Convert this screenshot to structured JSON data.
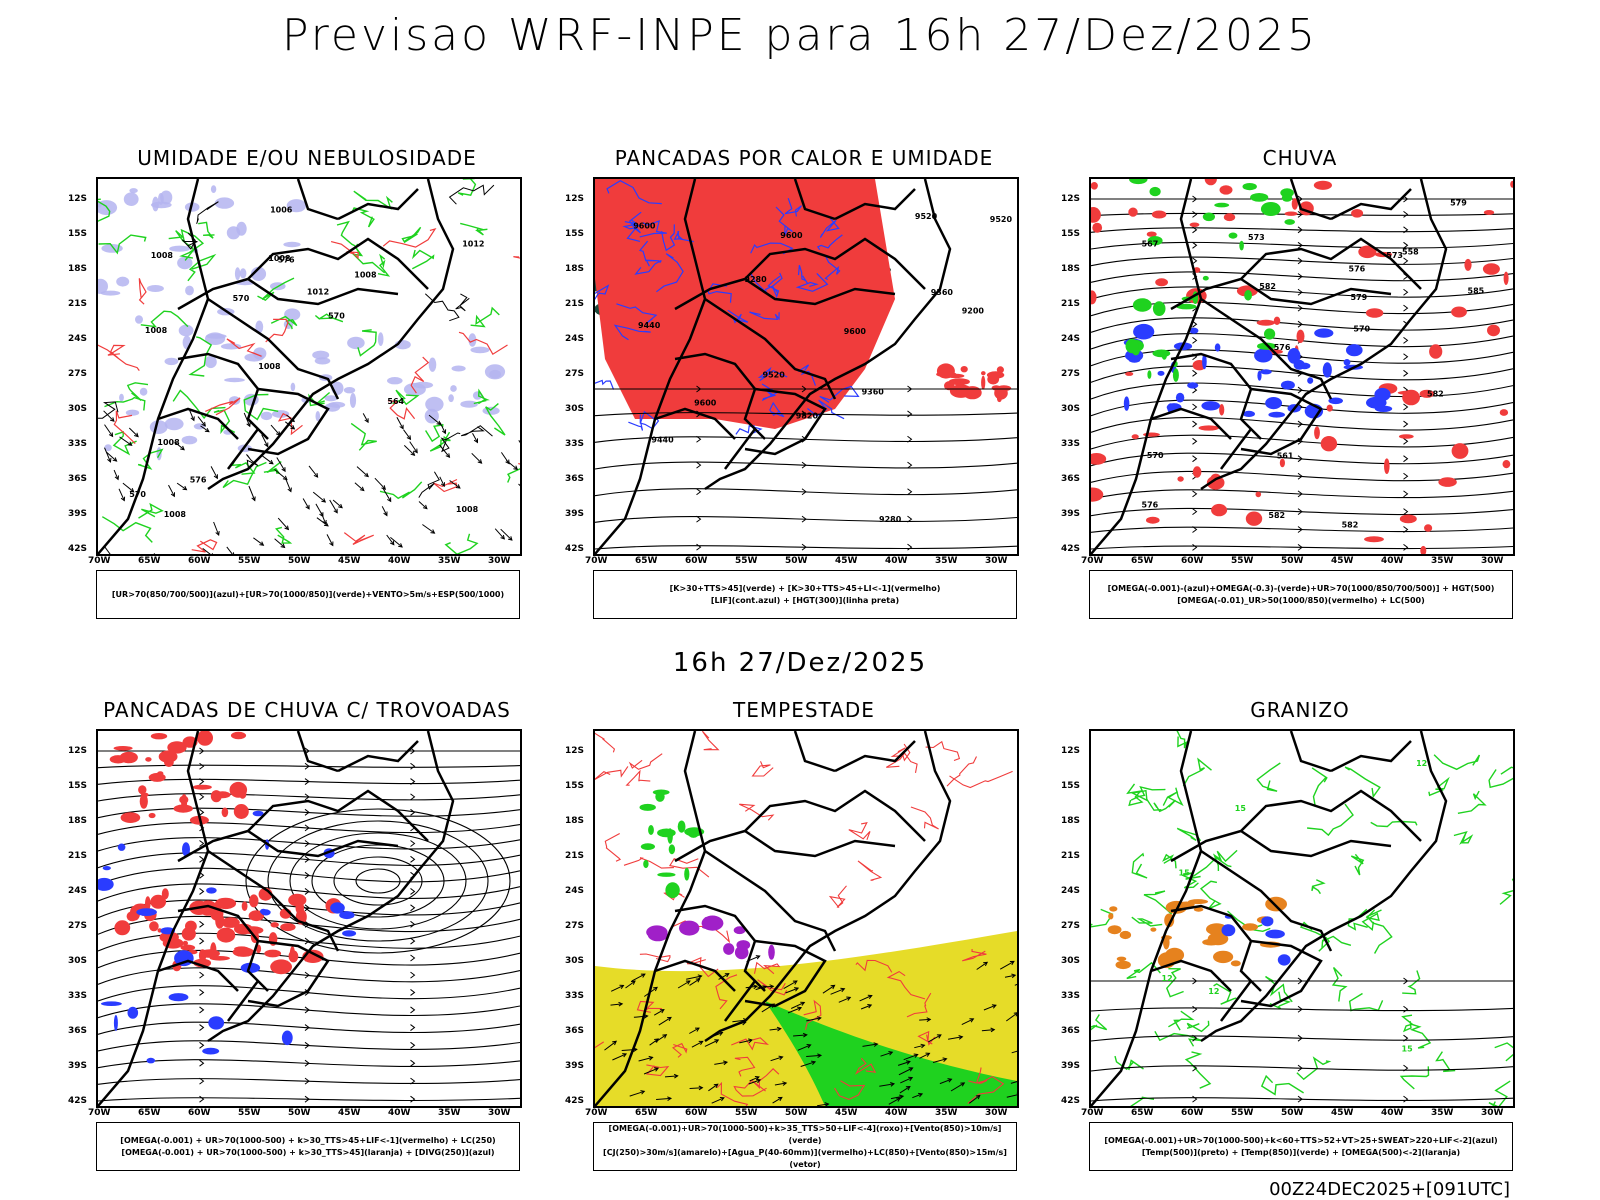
{
  "header": {
    "title": "Previsao WRF-INPE  para 16h 27/Dez/2025"
  },
  "subtitle": "16h 27/Dez/2025",
  "footer": "00Z24DEC2025+[091UTC]",
  "colors": {
    "red": "#f03c3c",
    "green": "#1fd21f",
    "blue": "#2a3cff",
    "lavender": "#b4b4f0",
    "yellow": "#e6dc28",
    "dark_green": "#1e4a3c",
    "orange": "#e6821e",
    "purple": "#a020c8"
  },
  "axes": {
    "y_ticks": [
      "12S",
      "15S",
      "18S",
      "21S",
      "24S",
      "27S",
      "30S",
      "33S",
      "36S",
      "39S",
      "42S"
    ],
    "x_ticks": [
      "70W",
      "65W",
      "60W",
      "55W",
      "50W",
      "45W",
      "40W",
      "35W",
      "30W"
    ]
  },
  "panels": [
    {
      "title": "UMIDADE E/OU NEBULOSIDADE",
      "legend": [
        "[UR>70(850/700/500)](azul)+[UR>70(1000/850)](verde)+VENTO>5m/s+ESP(500/1000)"
      ]
    },
    {
      "title": "PANCADAS POR CALOR E UMIDADE",
      "legend": [
        "[K>30+TTS>45](verde) + [K>30+TTS>45+LI<-1](vermelho)",
        "[LIF](cont.azul) + [HGT(300)](linha preta)"
      ]
    },
    {
      "title": "CHUVA",
      "legend": [
        "[OMEGA(-0.001)-(azul)+OMEGA(-0.3)-(verde)+UR>70(1000/850/700/500)] + HGT(500)",
        "[OMEGA(-0.01)_UR>50(1000/850)(vermelho) + LC(500)"
      ]
    },
    {
      "title": "PANCADAS DE CHUVA C/ TROVOADAS",
      "legend": [
        "[OMEGA(-0.001) + UR>70(1000-500) + k>30_TTS>45+LIF<-1](vermelho) + LC(250)",
        "[OMEGA(-0.001) + UR>70(1000-500) + k>30_TTS>45](laranja) + [DIVG(250)](azul)"
      ]
    },
    {
      "title": "TEMPESTADE",
      "legend": [
        "[OMEGA(-0.001)+UR>70(1000-500)+k>35_TTS>50+LIF<-4](roxo)+[Vento(850)>10m/s](verde)",
        "[CJ(250)>30m/s](amarelo)+[Agua_P(40-60mm)](vermelho)+LC(850)+[Vento(850)>15m/s](vetor)"
      ]
    },
    {
      "title": "GRANIZO",
      "legend": [
        "[OMEGA(-0.001)+UR>70(1000-500)+k<60+TTS>52+VT>25+SWEAT>220+LIF<-2](azul)",
        "[Temp(500)](preto) + [Temp(850)](verde) + [OMEGA(500)<-2](laranja)"
      ]
    }
  ],
  "contour_labels": {
    "p1": [
      "1008",
      "1008",
      "1012",
      "1008",
      "1008",
      "1008",
      "1008",
      "1012",
      "1008",
      "570",
      "570",
      "576",
      "576",
      "570",
      "564",
      "1008",
      "1006"
    ],
    "p2": [
      "9600",
      "9600",
      "9520",
      "9600",
      "9600",
      "9520",
      "9520",
      "9440",
      "9360",
      "9280",
      "9200",
      "9520",
      "9440",
      "9360",
      "9280"
    ],
    "p3": [
      "582",
      "582",
      "585",
      "579",
      "576",
      "576",
      "573",
      "570",
      "567",
      "561",
      "558",
      "570",
      "573",
      "576",
      "579",
      "582",
      "582"
    ],
    "p6": [
      "12",
      "12",
      "15",
      "15",
      "15",
      "12"
    ]
  },
  "chart_data": {
    "type": "map",
    "title": "Previsao WRF-INPE  para 16h 27/Dez/2025",
    "panels": [
      "UMIDADE E/OU NEBULOSIDADE",
      "PANCADAS POR CALOR E UMIDADE",
      "CHUVA",
      "PANCADAS DE CHUVA C/ TROVOADAS",
      "TEMPESTADE",
      "GRANIZO"
    ],
    "lon_range": [
      -70,
      -28
    ],
    "lat_range": [
      -42,
      -10
    ],
    "xlabel": "",
    "ylabel": ""
  }
}
